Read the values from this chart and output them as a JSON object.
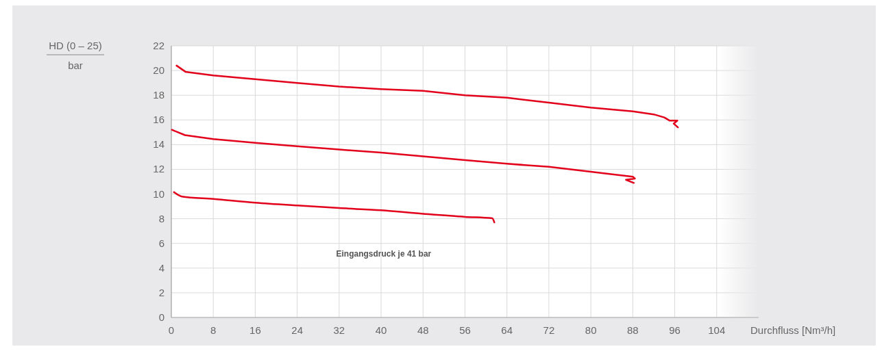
{
  "chart_data": {
    "type": "line",
    "xlabel": "Durchfluss [Nm³/h]",
    "ylabel": "HD (0 – 25)\nbar",
    "annotations": [
      "Eingangsdruck je 41 bar"
    ],
    "xlim": [
      0,
      112
    ],
    "ylim": [
      0,
      22
    ],
    "xticks": [
      0,
      8,
      16,
      24,
      32,
      40,
      48,
      56,
      64,
      72,
      80,
      88,
      96,
      104
    ],
    "yticks": [
      0,
      2,
      4,
      6,
      8,
      10,
      12,
      14,
      16,
      18,
      20,
      22
    ],
    "grid": true,
    "marker": "none",
    "line_style": "solid",
    "series": [
      {
        "color": "#e2001a",
        "x": [
          1.0,
          2.7,
          8,
          16,
          24,
          32,
          40,
          48,
          56,
          64,
          72,
          80,
          88,
          92,
          94,
          95,
          96.5,
          95.8,
          96.6
        ],
        "values": [
          20.4,
          19.9,
          19.6,
          19.3,
          19.0,
          18.7,
          18.5,
          18.35,
          18.0,
          17.8,
          17.4,
          17.0,
          16.7,
          16.45,
          16.2,
          15.95,
          15.95,
          15.7,
          15.4
        ]
      },
      {
        "color": "#e2001a",
        "x": [
          0.1,
          2.6,
          8,
          16,
          24,
          32,
          40,
          48,
          56,
          64,
          72,
          80,
          88,
          88.4,
          86.7,
          88.2
        ],
        "values": [
          15.2,
          14.77,
          14.45,
          14.15,
          13.87,
          13.6,
          13.35,
          13.05,
          12.75,
          12.45,
          12.2,
          11.8,
          11.4,
          11.25,
          11.15,
          10.9
        ]
      },
      {
        "color": "#e2001a",
        "x": [
          0.5,
          2,
          8,
          16,
          24,
          32,
          40,
          48,
          56,
          61.2,
          61.6
        ],
        "values": [
          10.15,
          9.8,
          9.6,
          9.3,
          9.07,
          8.86,
          8.68,
          8.4,
          8.15,
          8.03,
          7.7
        ]
      }
    ]
  }
}
